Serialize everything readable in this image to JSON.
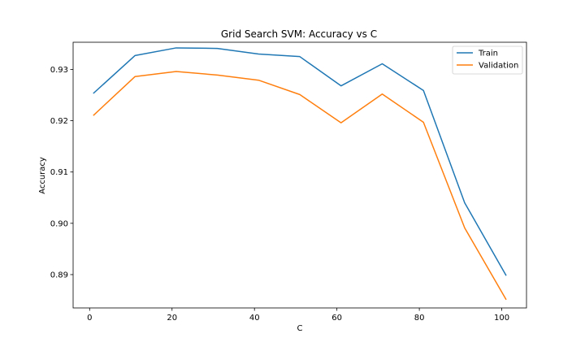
{
  "chart_data": {
    "type": "line",
    "title": "Grid Search SVM: Accuracy vs C",
    "xlabel": "C",
    "ylabel": "Accuracy",
    "x": [
      1,
      11,
      21,
      31,
      41,
      51,
      61,
      71,
      81,
      91,
      101
    ],
    "xlim": [
      -4.0,
      106.0
    ],
    "ylim": [
      0.8835,
      0.9353
    ],
    "xticks": [
      0,
      20,
      40,
      60,
      80,
      100
    ],
    "yticks": [
      0.89,
      0.9,
      0.91,
      0.92,
      0.93
    ],
    "xtick_labels": [
      "0",
      "20",
      "40",
      "60",
      "80",
      "100"
    ],
    "ytick_labels": [
      "0.89",
      "0.90",
      "0.91",
      "0.92",
      "0.93"
    ],
    "grid": false,
    "legend_position": "top-right",
    "series": [
      {
        "name": "Train",
        "color": "#1f77b4",
        "values": [
          0.9254,
          0.9327,
          0.9342,
          0.9341,
          0.933,
          0.9325,
          0.9268,
          0.9311,
          0.9259,
          0.904,
          0.8899
        ]
      },
      {
        "name": "Validation",
        "color": "#ff7f0e",
        "values": [
          0.9211,
          0.9286,
          0.9296,
          0.9289,
          0.9279,
          0.9251,
          0.9196,
          0.9252,
          0.9197,
          0.8991,
          0.8852
        ]
      }
    ]
  }
}
